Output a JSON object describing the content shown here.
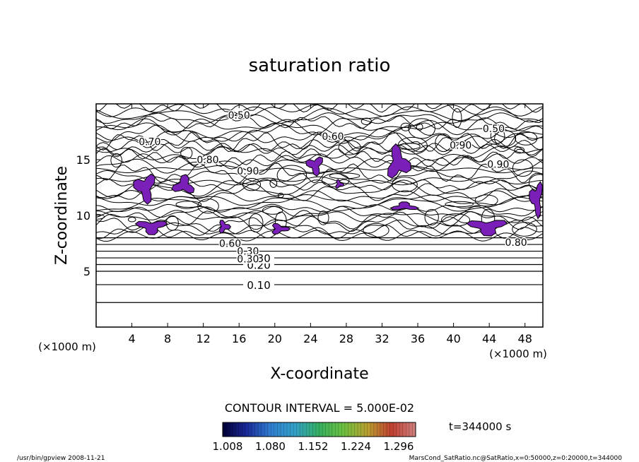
{
  "chart_data": {
    "type": "contour",
    "title": "saturation ratio",
    "xlabel": "X-coordinate",
    "ylabel": "Z-coordinate",
    "x_unit_left": "(×1000 m)",
    "x_unit_right": "(×1000 m)",
    "xlim": [
      0,
      50
    ],
    "ylim": [
      0,
      20
    ],
    "xticks": [
      4,
      8,
      12,
      16,
      20,
      24,
      28,
      32,
      36,
      40,
      44,
      48
    ],
    "yticks": [
      5,
      10,
      15
    ],
    "contour_interval_text": "CONTOUR INTERVAL = 5.000E-02",
    "time_label": "t=344000 s",
    "colorbar": {
      "ticks": [
        "1.008",
        "1.080",
        "1.152",
        "1.224",
        "1.296"
      ],
      "colors": [
        "#000033",
        "#1a2a9a",
        "#2f7fd0",
        "#33a0c8",
        "#35b060",
        "#6cc040",
        "#b8a030",
        "#c04030",
        "#d08080"
      ]
    },
    "shade_color": "#7a1fb8",
    "horizontal_contours": [
      {
        "z": 2.2,
        "label": ""
      },
      {
        "z": 3.8,
        "label": "0.10"
      },
      {
        "z": 5.0,
        "label": ""
      },
      {
        "z": 5.6,
        "label": "0.20"
      },
      {
        "z": 6.2,
        "label": "0.30"
      },
      {
        "z": 6.8,
        "label": ""
      },
      {
        "z": 7.4,
        "label": ""
      },
      {
        "z": 8.0,
        "label": ""
      }
    ],
    "contour_labels": [
      {
        "x": 16.0,
        "z": 19.0,
        "text": "0.50"
      },
      {
        "x": 6.0,
        "z": 16.6,
        "text": "0.70"
      },
      {
        "x": 26.5,
        "z": 17.1,
        "text": "0.60"
      },
      {
        "x": 44.5,
        "z": 17.8,
        "text": "0.50"
      },
      {
        "x": 12.5,
        "z": 15.0,
        "text": "0.80"
      },
      {
        "x": 17.0,
        "z": 14.0,
        "text": "0.90"
      },
      {
        "x": 40.8,
        "z": 16.3,
        "text": "0.90"
      },
      {
        "x": 45.0,
        "z": 14.6,
        "text": "0.90"
      },
      {
        "x": 47.0,
        "z": 7.6,
        "text": "0.80"
      },
      {
        "x": 15.0,
        "z": 7.5,
        "text": "0.60"
      },
      {
        "x": 17.0,
        "z": 6.8,
        "text": "0.30"
      },
      {
        "x": 17.0,
        "z": 6.1,
        "text": "0.30"
      }
    ],
    "shaded_regions": [
      {
        "x": 5.5,
        "z": 12.5,
        "rx": 1.3,
        "rz": 1.4
      },
      {
        "x": 9.8,
        "z": 12.7,
        "rx": 1.3,
        "rz": 0.9
      },
      {
        "x": 6.2,
        "z": 9.0,
        "rx": 1.8,
        "rz": 0.7
      },
      {
        "x": 14.3,
        "z": 9.0,
        "rx": 0.7,
        "rz": 0.6
      },
      {
        "x": 20.5,
        "z": 8.8,
        "rx": 1.1,
        "rz": 0.5
      },
      {
        "x": 24.5,
        "z": 14.5,
        "rx": 1.0,
        "rz": 0.9
      },
      {
        "x": 33.8,
        "z": 14.7,
        "rx": 1.4,
        "rz": 1.6
      },
      {
        "x": 34.5,
        "z": 10.8,
        "rx": 1.6,
        "rz": 0.4
      },
      {
        "x": 43.8,
        "z": 9.0,
        "rx": 2.3,
        "rz": 0.8
      },
      {
        "x": 49.3,
        "z": 11.5,
        "rx": 0.8,
        "rz": 1.7
      },
      {
        "x": 27.2,
        "z": 12.8,
        "rx": 0.5,
        "rz": 0.4
      }
    ]
  },
  "footer": {
    "left": "/usr/bin/gpview 2008-11-21",
    "right": "MarsCond_SatRatio.nc@SatRatio,x=0:50000,z=0:20000,t=344000"
  }
}
